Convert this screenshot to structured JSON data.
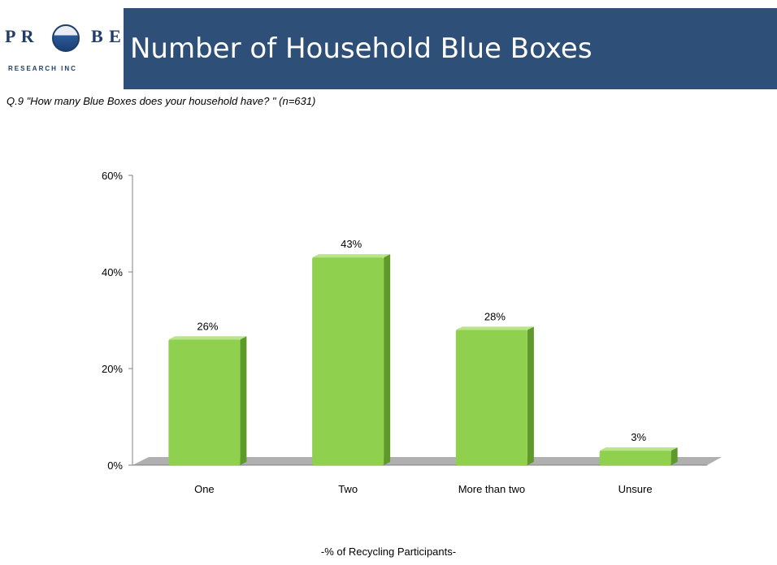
{
  "header": {
    "logo_text_left": "P R",
    "logo_text_right": "B E",
    "logo_subtext": "RESEARCH INC",
    "title": "Number of Household Blue Boxes"
  },
  "question": "Q.9 \"How many Blue Boxes does your household have? \" (n=631)",
  "footer_label": "-% of Recycling Participants-",
  "colors": {
    "header_band": "#2e4f78",
    "bar_front": "#8fd14f",
    "bar_side": "#5e9a2a",
    "bar_top": "#b9e48a",
    "floor": "#b0b0b0"
  },
  "chart_data": {
    "type": "bar",
    "categories": [
      "One",
      "Two",
      "More than two",
      "Unsure"
    ],
    "values": [
      26,
      43,
      28,
      3
    ],
    "data_labels": [
      "26%",
      "43%",
      "28%",
      "3%"
    ],
    "ylim": [
      0,
      60
    ],
    "yticks": [
      0,
      20,
      40,
      60
    ],
    "ytick_labels": [
      "0%",
      "20%",
      "40%",
      "60%"
    ],
    "grid": false,
    "legend": "none"
  }
}
